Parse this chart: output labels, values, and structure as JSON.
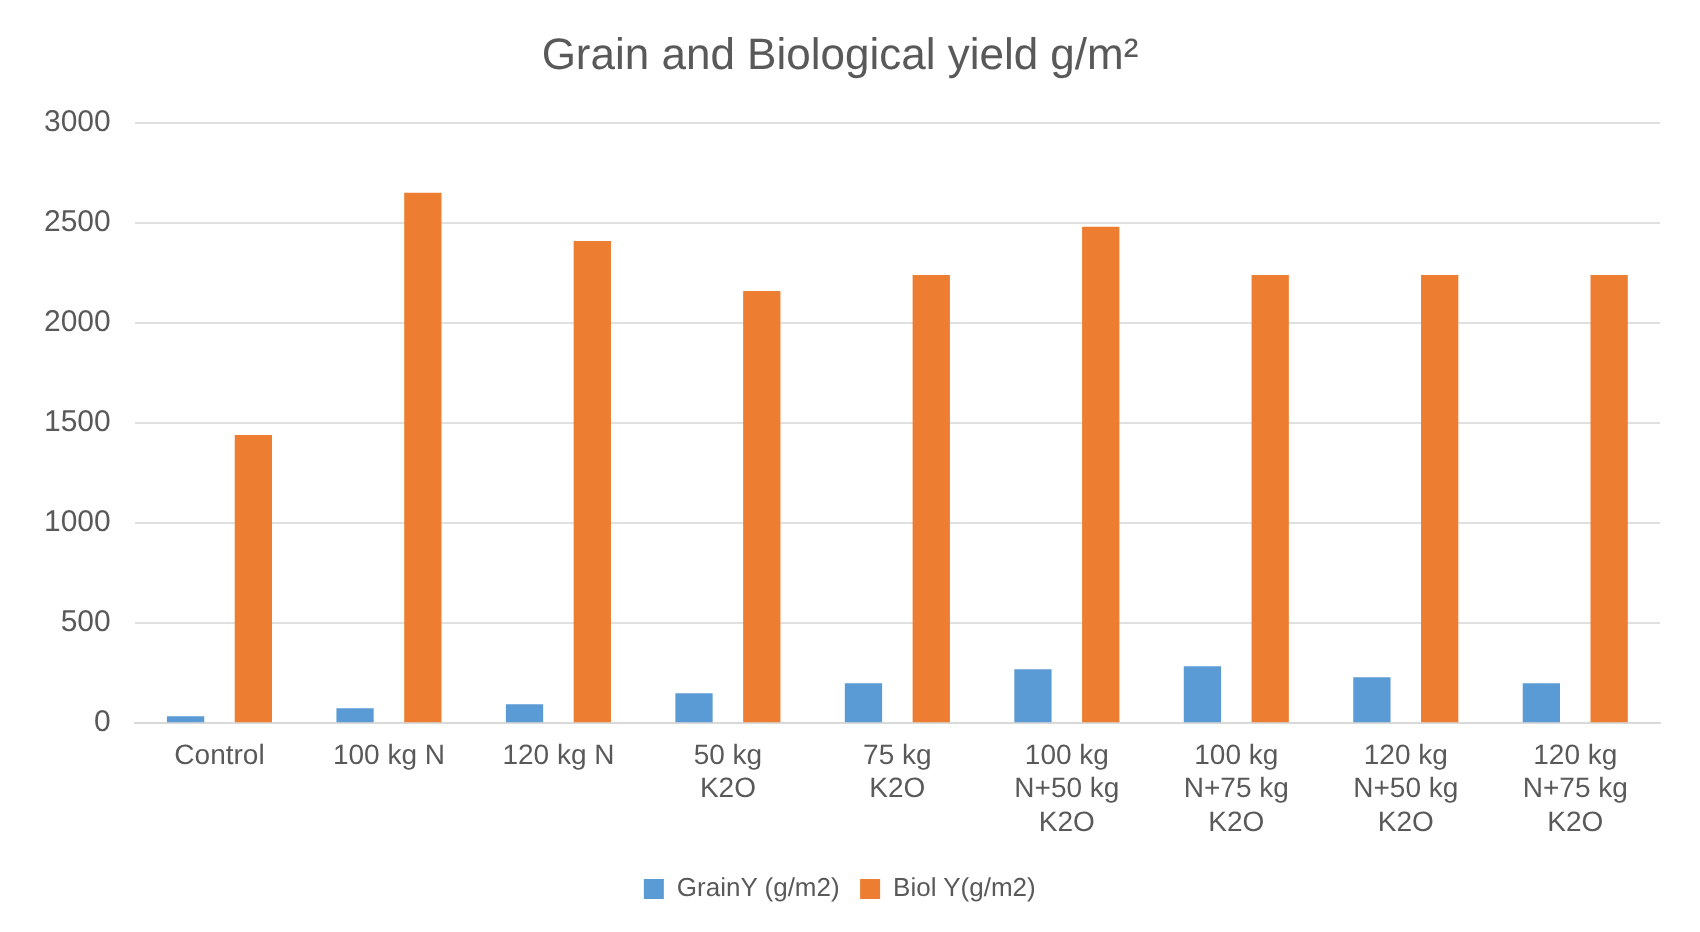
{
  "chart_data": {
    "type": "bar",
    "title": "Grain and Biological yield g/m²",
    "categories": [
      "Control",
      "100 kg N",
      "120 kg N",
      "50 kg\nK2O",
      "75 kg\nK2O",
      "100 kg\nN+50 kg\nK2O",
      "100 kg\nN+75 kg\nK2O",
      "120 kg\nN+50 kg\nK2O",
      "120 kg\nN+75 kg\nK2O"
    ],
    "series": [
      {
        "name": "GrainY (g/m2)",
        "color": "#5b9bd5",
        "values": [
          35,
          75,
          95,
          150,
          200,
          270,
          285,
          230,
          200
        ]
      },
      {
        "name": "Biol Y(g/m2)",
        "color": "#ed7d31",
        "values": [
          1440,
          2650,
          2410,
          2160,
          2240,
          2480,
          2240,
          2240,
          2240
        ]
      }
    ],
    "ylim": [
      0,
      3000
    ],
    "yticks": [
      0,
      500,
      1000,
      1500,
      2000,
      2500,
      3000
    ],
    "grid": "y",
    "legend": "bottom"
  }
}
